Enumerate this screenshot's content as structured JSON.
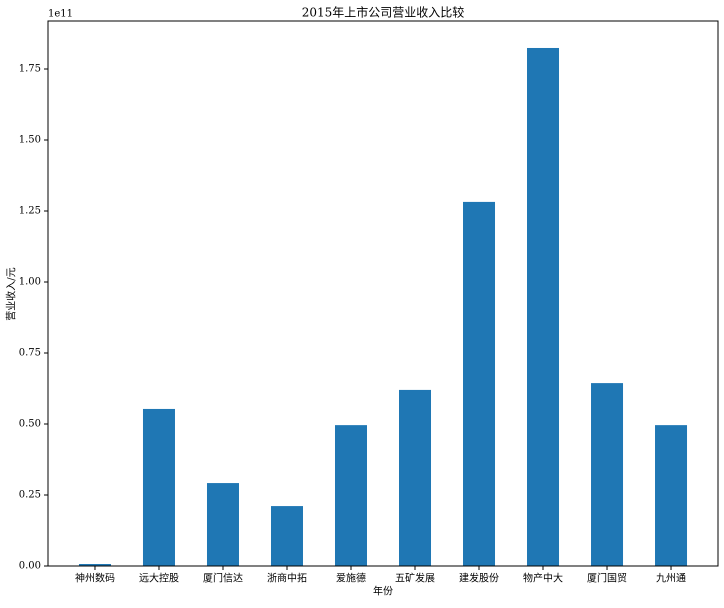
{
  "chart_data": {
    "type": "bar",
    "title": "2015年上市公司营业收入比较",
    "xlabel": "年份",
    "ylabel": "营业收入/元",
    "offset_label": "1e11",
    "categories": [
      "神州数码",
      "远大控股",
      "厦门信达",
      "浙商中拓",
      "爱施德",
      "五矿发展",
      "建发股份",
      "物产中大",
      "厦门国贸",
      "九州通"
    ],
    "values": [
      0.007,
      0.553,
      0.292,
      0.211,
      0.496,
      0.62,
      1.282,
      1.824,
      0.644,
      0.496
    ],
    "color": "#1f77b4",
    "ylim": [
      0,
      1.919
    ],
    "yticks": [
      {
        "value": 0,
        "label": "0.00"
      },
      0.25,
      {
        "value": 0.5,
        "label": "0.50"
      },
      0.75,
      {
        "value": 1,
        "label": "1.00"
      },
      1.25,
      {
        "value": 1.5,
        "label": "1.50"
      },
      1.75
    ]
  }
}
